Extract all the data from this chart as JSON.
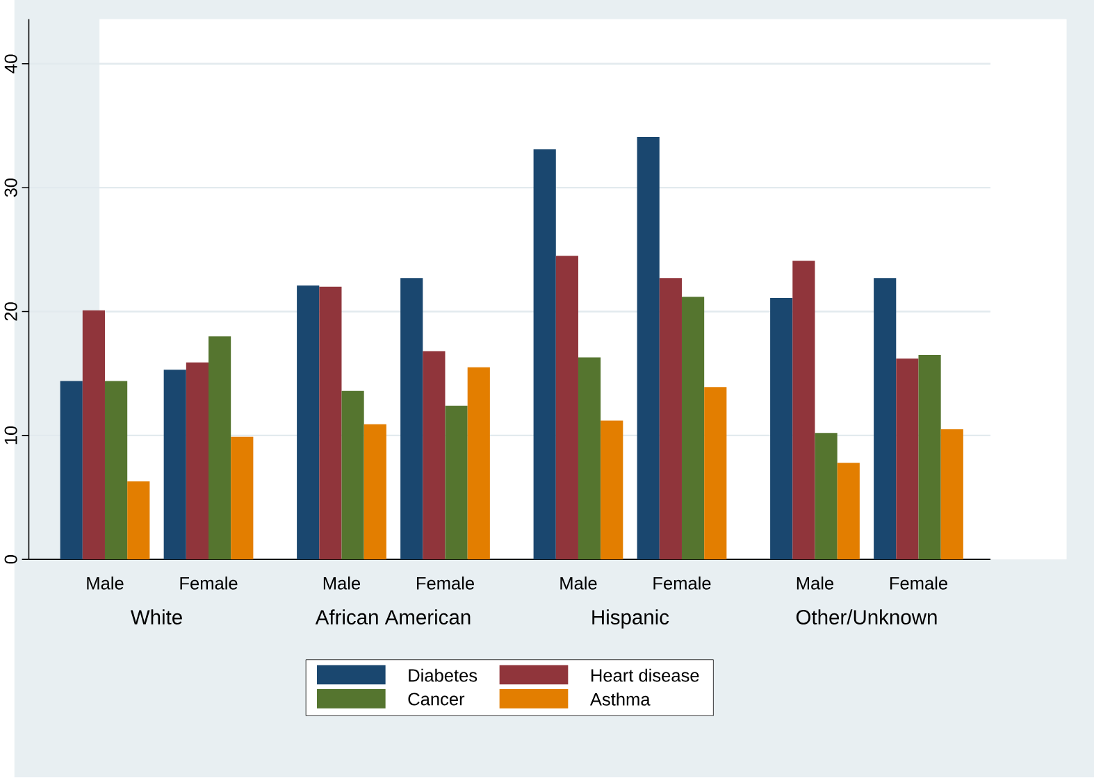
{
  "chart_data": {
    "type": "bar",
    "categories": [
      "Male",
      "Female",
      "Male",
      "Female",
      "Male",
      "Female",
      "Male",
      "Female"
    ],
    "annotations": [
      "White",
      "African American",
      "Hispanic",
      "Other/Unknown"
    ],
    "series": [
      {
        "name": "Diabetes",
        "color": "#1a476f",
        "values": [
          14.4,
          15.3,
          22.1,
          22.7,
          33.1,
          34.1,
          21.1,
          22.7
        ]
      },
      {
        "name": "Heart disease",
        "color": "#90353b",
        "values": [
          20.1,
          15.9,
          22.0,
          16.8,
          24.5,
          22.7,
          24.1,
          16.2
        ]
      },
      {
        "name": "Cancer",
        "color": "#55752f",
        "values": [
          14.4,
          18.0,
          13.6,
          12.4,
          16.3,
          21.2,
          10.2,
          16.5
        ]
      },
      {
        "name": "Asthma",
        "color": "#e37e00",
        "values": [
          6.3,
          9.9,
          10.9,
          15.5,
          11.2,
          13.9,
          7.8,
          10.5
        ]
      }
    ],
    "ylim": [
      0,
      43.6
    ],
    "yticks": [
      0,
      10,
      20,
      30,
      40
    ],
    "grid": "y",
    "legend": "bottom"
  }
}
